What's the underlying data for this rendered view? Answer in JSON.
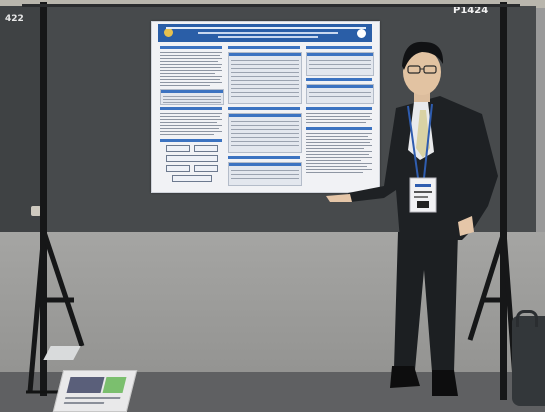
{
  "booth": {
    "left_panel_number": "422",
    "right_panel_number": "P1424"
  },
  "colors": {
    "board": "#474a4c",
    "poster_header": "#2a5ea7",
    "poster_section": "#3c73c1",
    "floor": "#9f9f9d",
    "suit": "#1e2124",
    "lanyard": "#2f5db0"
  },
  "icons": {
    "poster_left_logo": "seal-icon",
    "poster_right_logo": "seal-icon"
  }
}
